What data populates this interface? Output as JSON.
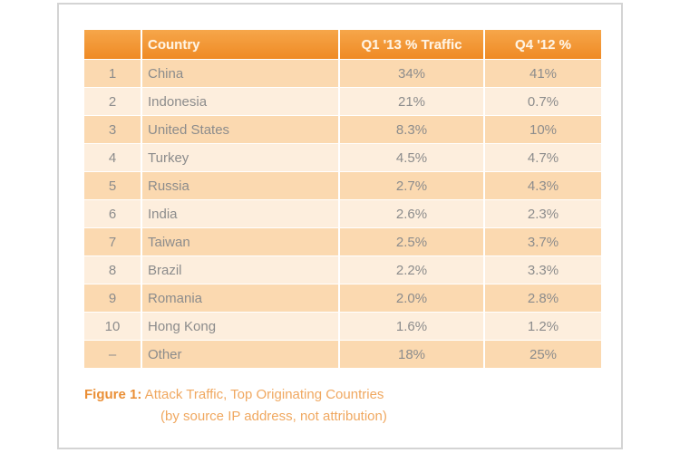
{
  "table": {
    "headers": {
      "rank": "",
      "country": "Country",
      "q1_13": "Q1 '13 % Traffic",
      "q4_12": "Q4 '12 %"
    },
    "rows": [
      {
        "rank": "1",
        "country": "China",
        "q1_13": "34%",
        "q4_12": "41%"
      },
      {
        "rank": "2",
        "country": "Indonesia",
        "q1_13": "21%",
        "q4_12": "0.7%"
      },
      {
        "rank": "3",
        "country": "United States",
        "q1_13": "8.3%",
        "q4_12": "10%"
      },
      {
        "rank": "4",
        "country": "Turkey",
        "q1_13": "4.5%",
        "q4_12": "4.7%"
      },
      {
        "rank": "5",
        "country": "Russia",
        "q1_13": "2.7%",
        "q4_12": "4.3%"
      },
      {
        "rank": "6",
        "country": "India",
        "q1_13": "2.6%",
        "q4_12": "2.3%"
      },
      {
        "rank": "7",
        "country": "Taiwan",
        "q1_13": "2.5%",
        "q4_12": "3.7%"
      },
      {
        "rank": "8",
        "country": "Brazil",
        "q1_13": "2.2%",
        "q4_12": "3.3%"
      },
      {
        "rank": "9",
        "country": "Romania",
        "q1_13": "2.0%",
        "q4_12": "2.8%"
      },
      {
        "rank": "10",
        "country": "Hong Kong",
        "q1_13": "1.6%",
        "q4_12": "1.2%"
      },
      {
        "rank": "–",
        "country": "Other",
        "q1_13": "18%",
        "q4_12": "25%"
      }
    ]
  },
  "caption": {
    "label": "Figure 1:",
    "line1": " Attack Traffic, Top Originating Countries",
    "line2": "(by source IP address, not attribution)"
  },
  "colors": {
    "header_orange": "#ef8a24",
    "row_dark": "#fbd9b0",
    "row_light": "#fdeedd",
    "caption_label": "#ea8f36"
  }
}
